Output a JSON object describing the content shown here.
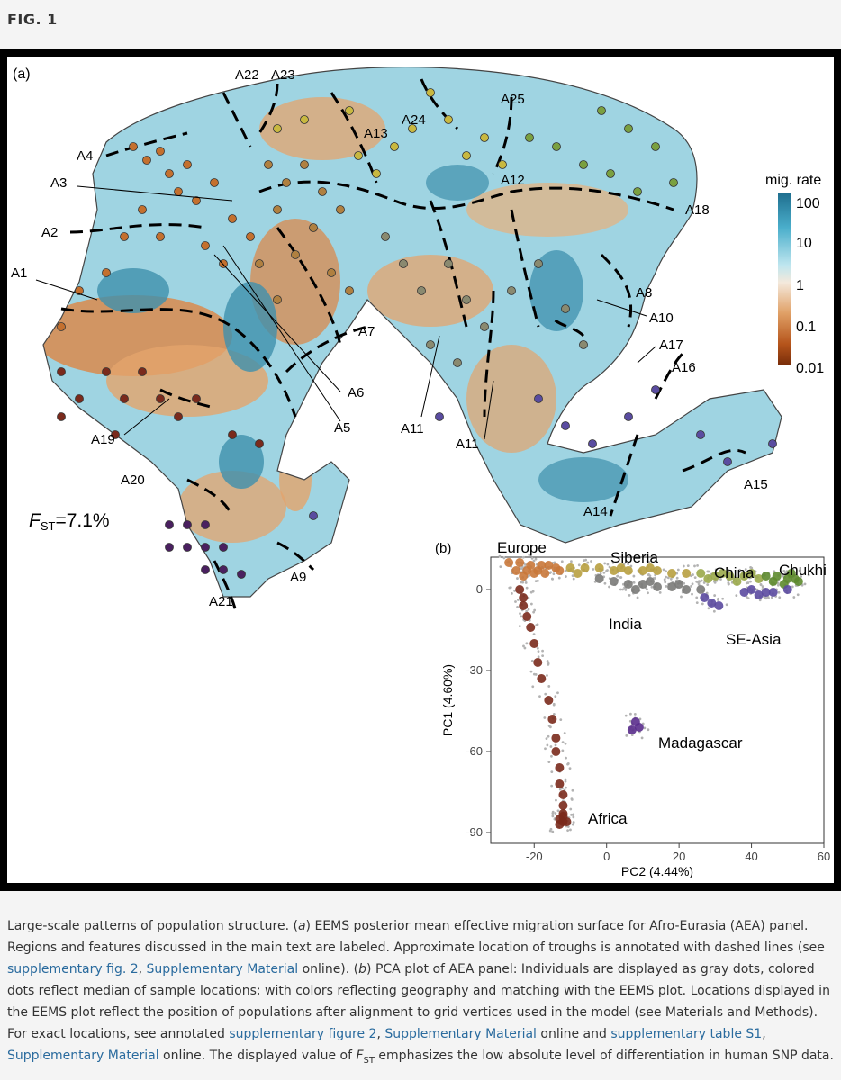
{
  "fig_label": "FIG. 1",
  "panel_a": {
    "label": "(a)",
    "fst_symbol": "F",
    "fst_sub": "ST",
    "fst_value": "=7.1%",
    "legend_title": "mig. rate",
    "legend_ticks": [
      "100",
      "10",
      "1",
      "0.1",
      "0.01"
    ],
    "legend_colors": [
      "#1f6f8f",
      "#4aaecb",
      "#bfe6ef",
      "#f4e9dc",
      "#e0a066",
      "#b5541b",
      "#7a2e0a"
    ],
    "region_labels": [
      "A22",
      "A23",
      "A4",
      "A13",
      "A24",
      "A25",
      "A3",
      "A12",
      "A18",
      "A2",
      "A1",
      "A8",
      "A10",
      "A7",
      "A17",
      "A16",
      "A6",
      "A5",
      "A19",
      "A11",
      "A11",
      "A20",
      "A14",
      "A15",
      "A9",
      "A21"
    ]
  },
  "chart_data": {
    "type": "scatter",
    "title": "",
    "xlabel": "PC2 (4.44%)",
    "ylabel": "PC1 (4.60%)",
    "xlim": [
      -32,
      60
    ],
    "ylim": [
      -94,
      12
    ],
    "xticks": [
      "-20",
      "0",
      "20",
      "40",
      "60"
    ],
    "yticks": [
      "0",
      "-30",
      "-60",
      "-90"
    ],
    "panel_label": "(b)",
    "annotations": [
      "Europe",
      "Siberia",
      "China",
      "Chukhi",
      "India",
      "SE-Asia",
      "Madagascar",
      "Africa"
    ],
    "series": [
      {
        "name": "Europe",
        "color": "#c9783a",
        "points": [
          [
            -27,
            10
          ],
          [
            -24,
            10
          ],
          [
            -21,
            9
          ],
          [
            -18,
            9
          ],
          [
            -16,
            9
          ],
          [
            -14,
            8
          ],
          [
            -25,
            7
          ],
          [
            -22,
            7
          ],
          [
            -19,
            7
          ],
          [
            -17,
            6
          ],
          [
            -13,
            7
          ],
          [
            -23,
            5
          ],
          [
            -20,
            6
          ]
        ]
      },
      {
        "name": "Siberia",
        "color": "#b8a040",
        "points": [
          [
            -10,
            8
          ],
          [
            -6,
            8
          ],
          [
            -2,
            8
          ],
          [
            2,
            7
          ],
          [
            6,
            7
          ],
          [
            10,
            7
          ],
          [
            14,
            7
          ],
          [
            18,
            6
          ],
          [
            22,
            6
          ],
          [
            -8,
            6
          ],
          [
            4,
            8
          ],
          [
            12,
            8
          ]
        ]
      },
      {
        "name": "China",
        "color": "#9aa84a",
        "points": [
          [
            26,
            6
          ],
          [
            30,
            5
          ],
          [
            34,
            5
          ],
          [
            38,
            5
          ],
          [
            42,
            4
          ],
          [
            28,
            4
          ],
          [
            36,
            3
          ],
          [
            40,
            6
          ],
          [
            32,
            6
          ]
        ]
      },
      {
        "name": "Chukhi",
        "color": "#5d8a2e",
        "points": [
          [
            44,
            5
          ],
          [
            47,
            5
          ],
          [
            50,
            4
          ],
          [
            52,
            4
          ],
          [
            46,
            3
          ],
          [
            49,
            2
          ],
          [
            51,
            6
          ],
          [
            53,
            3
          ]
        ]
      },
      {
        "name": "India",
        "color": "#7a7a78",
        "points": [
          [
            -2,
            4
          ],
          [
            2,
            3
          ],
          [
            6,
            2
          ],
          [
            10,
            2
          ],
          [
            14,
            1
          ],
          [
            18,
            1
          ],
          [
            22,
            0
          ],
          [
            26,
            0
          ],
          [
            20,
            2
          ],
          [
            12,
            3
          ],
          [
            8,
            0
          ]
        ]
      },
      {
        "name": "SE-Asia",
        "color": "#5b4aa0",
        "points": [
          [
            27,
            -3
          ],
          [
            29,
            -5
          ],
          [
            31,
            -6
          ],
          [
            38,
            -1
          ],
          [
            42,
            -2
          ],
          [
            46,
            -1
          ],
          [
            50,
            0
          ],
          [
            40,
            0
          ],
          [
            44,
            -1
          ]
        ]
      },
      {
        "name": "Madagascar",
        "color": "#5a2e8c",
        "points": [
          [
            8,
            -49
          ],
          [
            9,
            -51
          ],
          [
            7,
            -52
          ]
        ]
      },
      {
        "name": "Africa",
        "color": "#7a2a1c",
        "points": [
          [
            -24,
            0
          ],
          [
            -23,
            -3
          ],
          [
            -23,
            -6
          ],
          [
            -22,
            -10
          ],
          [
            -21,
            -14
          ],
          [
            -20,
            -20
          ],
          [
            -19,
            -27
          ],
          [
            -18,
            -33
          ],
          [
            -16,
            -41
          ],
          [
            -15,
            -48
          ],
          [
            -14,
            -55
          ],
          [
            -14,
            -60
          ],
          [
            -13,
            -66
          ],
          [
            -13,
            -72
          ],
          [
            -12,
            -76
          ],
          [
            -12,
            -80
          ],
          [
            -12,
            -83
          ],
          [
            -13,
            -85
          ],
          [
            -12,
            -86
          ],
          [
            -13,
            -87
          ],
          [
            -11,
            -86
          ],
          [
            -12,
            -84
          ]
        ]
      }
    ]
  },
  "caption": {
    "p1": "Large-scale patterns of population structure. (",
    "a_it": "a",
    "p2": ") EEMS posterior mean effective migration surface for Afro-Eurasia (AEA) panel. Regions and features discussed in the main text are labeled. Approximate location of troughs is annotated with dashed lines (see ",
    "link1": "supplementary fig. 2",
    "sep1": ", ",
    "link2": "Supplementary Material",
    "p3": " online). (",
    "b_it": "b",
    "p4": ") PCA plot of AEA panel: Individuals are displayed as gray dots, colored dots reflect median of sample locations; with colors reflecting geography and matching with the EEMS plot. Locations displayed in the EEMS plot reflect the position of populations after alignment to grid vertices used in the model (see Materials and Methods). For exact locations, see annotated ",
    "link3": "supplementary figure 2",
    "sep2": ", ",
    "link4": "Supplementary Material",
    "p5": " online and ",
    "link5": "supplementary table S1",
    "sep3": ", ",
    "link6": "Supplementary Material",
    "p6": " online. The displayed value of ",
    "f_it": "F",
    "f_sub": "ST",
    "p7": " emphasizes the low absolute level of differentiation in human SNP data."
  }
}
